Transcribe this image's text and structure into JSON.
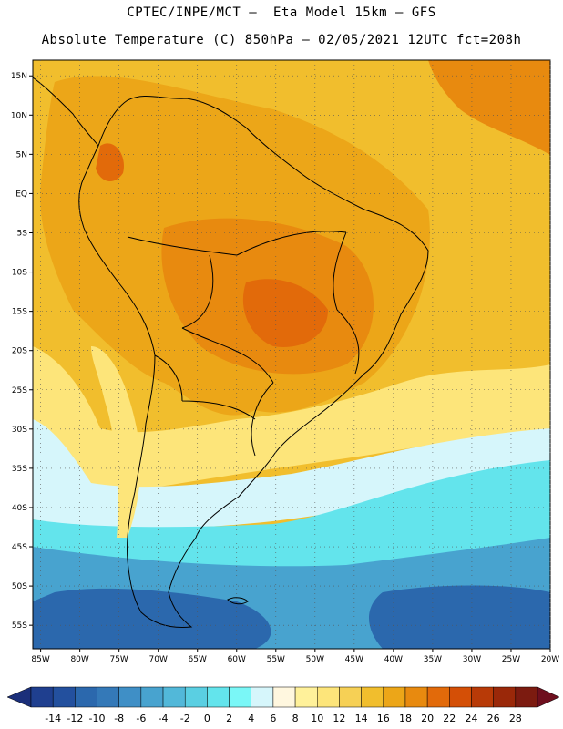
{
  "header": {
    "line1": "CPTEC/INPE/MCT –  Eta Model 15km – GFS",
    "line2": "Absolute Temperature (C) 850hPa – 02/05/2021 12UTC fct=208h"
  },
  "axes": {
    "lat_labels": [
      "15N",
      "10N",
      "5N",
      "EQ",
      "5S",
      "10S",
      "15S",
      "20S",
      "25S",
      "30S",
      "35S",
      "40S",
      "45S",
      "50S",
      "55S"
    ],
    "lat_values": [
      15,
      10,
      5,
      0,
      -5,
      -10,
      -15,
      -20,
      -25,
      -30,
      -35,
      -40,
      -45,
      -50,
      -55
    ],
    "lon_labels": [
      "85W",
      "80W",
      "75W",
      "70W",
      "65W",
      "60W",
      "55W",
      "50W",
      "45W",
      "40W",
      "35W",
      "30W",
      "25W",
      "20W"
    ],
    "lon_values": [
      -85,
      -80,
      -75,
      -70,
      -65,
      -60,
      -55,
      -50,
      -45,
      -40,
      -35,
      -30,
      -25,
      -20
    ],
    "lat_range": [
      -58,
      17
    ],
    "lon_range": [
      -86,
      -20
    ]
  },
  "colorbar": {
    "labels": [
      "-14",
      "-12",
      "-10",
      "-8",
      "-6",
      "-4",
      "-2",
      "0",
      "2",
      "4",
      "6",
      "8",
      "10",
      "12",
      "14",
      "16",
      "18",
      "20",
      "22",
      "24",
      "26",
      "28"
    ],
    "colors": [
      "#1f3f8f",
      "#23509e",
      "#2b68ad",
      "#3479b8",
      "#3f8fc6",
      "#48a3cf",
      "#52b8d9",
      "#5acfe2",
      "#63e4ec",
      "#7af7f7",
      "#d6f6fb",
      "#fff7df",
      "#fff19a",
      "#fde57a",
      "#f6d055",
      "#f1be2d",
      "#eca618",
      "#e88a0f",
      "#e26a0a",
      "#d44f06",
      "#b83a07",
      "#9a2809",
      "#7c1b10"
    ],
    "underflow_color": "#1b2f7a",
    "overflow_color": "#6e0f1e"
  },
  "fields": {
    "ocean_north_color": "#f1be2d",
    "continent_color": "#eca618",
    "brazil_core_color": "#e88a0f",
    "hotspot_color": "#e26a0a",
    "subtropic_color": "#fde57a",
    "cool_band_color": "#d6f6fb",
    "cold_band_color": "#63e4ec",
    "colder_color": "#48a3cf",
    "coldest_color": "#2b68ad",
    "coastline_color": "#000000"
  }
}
